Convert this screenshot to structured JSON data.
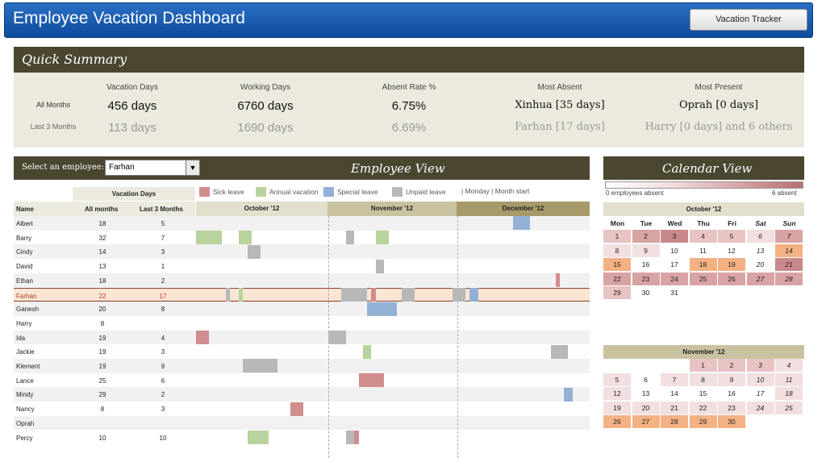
{
  "app": {
    "title": "Employee Vacation Dashboard",
    "tracker_button": "Vacation Tracker"
  },
  "summary": {
    "title": "Quick Summary",
    "row_labels": {
      "all": "All Months",
      "last3": "Last 3 Months"
    },
    "columns": [
      {
        "label": "Vacation Days",
        "all": "456 days",
        "last3": "113 days"
      },
      {
        "label": "Working Days",
        "all": "6760 days",
        "last3": "1690 days"
      },
      {
        "label": "Absent Rate %",
        "all": "6.75%",
        "last3": "6.69%"
      },
      {
        "label": "Most Absent",
        "all": "Xinhua [35 days]",
        "last3": "Farhan [17 days]"
      },
      {
        "label": "Most Present",
        "all": "Oprah [0 days]",
        "last3": "Harry [0 days] and 6 others"
      }
    ]
  },
  "employee_view": {
    "select_label": "Select an employee:",
    "selected_employee": "Farhan",
    "title": "Employee View",
    "vacation_days_header": "Vacation Days",
    "col_name": "Name",
    "col_all": "All months",
    "col_last3": "Last 3 Months",
    "legend": {
      "sick": "Sick leave",
      "annual": "Annual vacation",
      "special": "Special leave",
      "unpaid": "Unpaid leave",
      "note": "| Monday | Month start"
    },
    "months": [
      "October '12",
      "November '12",
      "December '12"
    ],
    "employees": [
      {
        "name": "Albert",
        "all": "18",
        "last3": "5"
      },
      {
        "name": "Barry",
        "all": "32",
        "last3": "7"
      },
      {
        "name": "Cindy",
        "all": "14",
        "last3": "3"
      },
      {
        "name": "David",
        "all": "13",
        "last3": "1"
      },
      {
        "name": "Ethan",
        "all": "18",
        "last3": "2"
      },
      {
        "name": "Farhan",
        "all": "22",
        "last3": "17"
      },
      {
        "name": "Ganesh",
        "all": "20",
        "last3": "8"
      },
      {
        "name": "Harry",
        "all": "8",
        "last3": ""
      },
      {
        "name": "Ida",
        "all": "19",
        "last3": "4"
      },
      {
        "name": "Jackie",
        "all": "19",
        "last3": "3"
      },
      {
        "name": "Klement",
        "all": "19",
        "last3": "9"
      },
      {
        "name": "Lance",
        "all": "25",
        "last3": "6"
      },
      {
        "name": "Mindy",
        "all": "29",
        "last3": "2"
      },
      {
        "name": "Nancy",
        "all": "8",
        "last3": "3"
      },
      {
        "name": "Oprah",
        "all": "",
        "last3": ""
      },
      {
        "name": "Percy",
        "all": "10",
        "last3": "10"
      }
    ],
    "leaves": [
      {
        "row": 0,
        "type": "special",
        "start_day": 75,
        "days": 4
      },
      {
        "row": 1,
        "type": "annual",
        "start_day": 1,
        "days": 6
      },
      {
        "row": 1,
        "type": "annual",
        "start_day": 11,
        "days": 3
      },
      {
        "row": 1,
        "type": "unpaid",
        "start_day": 36,
        "days": 2
      },
      {
        "row": 1,
        "type": "annual",
        "start_day": 43,
        "days": 3
      },
      {
        "row": 2,
        "type": "unpaid",
        "start_day": 13,
        "days": 3
      },
      {
        "row": 3,
        "type": "unpaid",
        "start_day": 43,
        "days": 2
      },
      {
        "row": 4,
        "type": "sick",
        "start_day": 85,
        "days": 1
      },
      {
        "row": 5,
        "type": "unpaid",
        "start_day": 8,
        "days": 1
      },
      {
        "row": 5,
        "type": "annual",
        "start_day": 11,
        "days": 1
      },
      {
        "row": 5,
        "type": "unpaid",
        "start_day": 35,
        "days": 6
      },
      {
        "row": 5,
        "type": "sick",
        "start_day": 42,
        "days": 1
      },
      {
        "row": 5,
        "type": "unpaid",
        "start_day": 49,
        "days": 3
      },
      {
        "row": 5,
        "type": "unpaid",
        "start_day": 61,
        "days": 3
      },
      {
        "row": 5,
        "type": "special",
        "start_day": 65,
        "days": 2
      },
      {
        "row": 6,
        "type": "special",
        "start_day": 41,
        "days": 7
      },
      {
        "row": 8,
        "type": "sick",
        "start_day": 1,
        "days": 3
      },
      {
        "row": 8,
        "type": "unpaid",
        "start_day": 32,
        "days": 4
      },
      {
        "row": 9,
        "type": "annual",
        "start_day": 40,
        "days": 2
      },
      {
        "row": 9,
        "type": "unpaid",
        "start_day": 84,
        "days": 4
      },
      {
        "row": 10,
        "type": "unpaid",
        "start_day": 12,
        "days": 8
      },
      {
        "row": 11,
        "type": "sick",
        "start_day": 39,
        "days": 6
      },
      {
        "row": 12,
        "type": "special",
        "start_day": 87,
        "days": 2
      },
      {
        "row": 13,
        "type": "sick",
        "start_day": 23,
        "days": 3
      },
      {
        "row": 15,
        "type": "annual",
        "start_day": 13,
        "days": 5
      },
      {
        "row": 15,
        "type": "unpaid",
        "start_day": 36,
        "days": 2
      },
      {
        "row": 15,
        "type": "sick",
        "start_day": 38,
        "days": 1
      }
    ]
  },
  "calendar_view": {
    "title": "Calendar View",
    "scale_min": "0 employees absent",
    "scale_max": "6 absent",
    "dow": [
      "Mon",
      "Tue",
      "Wed",
      "Thu",
      "Fri",
      "Sat",
      "Sun"
    ],
    "months": [
      {
        "title": "October '12",
        "start_weekday": 0,
        "days": 31,
        "levels": [
          2,
          3,
          4,
          2,
          2,
          1,
          3,
          1,
          1,
          0,
          0,
          0,
          0,
          2,
          0,
          0,
          0,
          0,
          0,
          0,
          4,
          3,
          3,
          3,
          3,
          3,
          3,
          3,
          2,
          0,
          0
        ],
        "holidays": [
          14,
          15,
          18,
          19
        ]
      },
      {
        "title": "November '12",
        "start_weekday": 3,
        "days": 30,
        "levels": [
          2,
          2,
          2,
          1,
          1,
          0,
          1,
          1,
          1,
          1,
          1,
          1,
          0,
          0,
          0,
          0,
          0,
          1,
          1,
          1,
          1,
          1,
          1,
          1,
          1,
          0,
          0,
          0,
          0,
          0
        ],
        "holidays": [
          26,
          27,
          28,
          29,
          30
        ]
      }
    ]
  }
}
